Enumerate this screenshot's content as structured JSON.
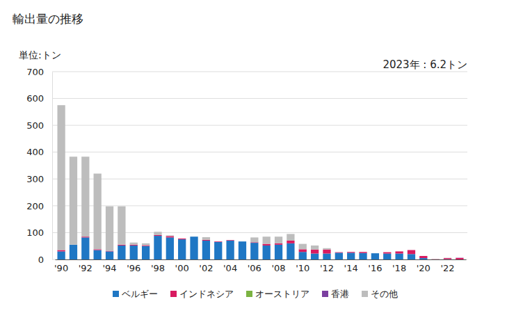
{
  "chart_data": {
    "type": "bar",
    "title": "輸出量の推移",
    "subtitle": "単位:トン",
    "annotation": "2023年 : 6.2トン",
    "stacked": true,
    "grid": true,
    "legend": "bottom",
    "categories": [
      "'90",
      null,
      "'92",
      null,
      "'94",
      null,
      "'96",
      null,
      "'98",
      null,
      "'00",
      null,
      "'02",
      null,
      "'04",
      null,
      "'06",
      null,
      "'08",
      null,
      "'10",
      null,
      "'12",
      null,
      "'14",
      null,
      "'16",
      null,
      "'18",
      null,
      "'20",
      null,
      "'22",
      null
    ],
    "ylim": [
      0,
      700
    ],
    "yticks": [
      0,
      100,
      200,
      300,
      400,
      500,
      600,
      700
    ],
    "series": [
      {
        "name": "ベルギー",
        "color": "#1f77c4",
        "values": [
          30,
          55,
          82,
          35,
          30,
          52,
          52,
          50,
          88,
          82,
          75,
          85,
          70,
          65,
          70,
          67,
          62,
          52,
          55,
          60,
          28,
          22,
          22,
          25,
          25,
          24,
          23,
          22,
          22,
          20,
          5,
          0,
          1,
          0
        ]
      },
      {
        "name": "インドネシア",
        "color": "#d81b60",
        "values": [
          5,
          0,
          3,
          3,
          2,
          3,
          3,
          3,
          3,
          5,
          3,
          0,
          3,
          2,
          2,
          0,
          2,
          6,
          5,
          10,
          10,
          15,
          15,
          2,
          3,
          4,
          0,
          5,
          8,
          15,
          8,
          1,
          4,
          5.5
        ]
      },
      {
        "name": "オーストリア",
        "color": "#7cb342",
        "values": [
          0,
          0,
          0,
          0,
          0,
          0,
          0,
          0,
          0,
          0,
          0,
          0,
          0,
          0,
          0,
          0,
          0,
          0,
          0,
          0,
          0,
          0,
          0,
          0,
          0,
          0,
          0,
          0,
          0,
          0,
          0,
          0,
          0,
          0
        ]
      },
      {
        "name": "香港",
        "color": "#7b3fa0",
        "values": [
          0,
          0,
          0,
          0,
          0,
          0,
          0,
          0,
          0,
          0,
          0,
          0,
          0,
          0,
          0,
          0,
          0,
          0,
          0,
          0,
          0,
          0,
          0,
          0,
          0,
          0,
          0,
          0,
          0,
          0,
          0,
          0,
          0,
          0.7
        ]
      },
      {
        "name": "その他",
        "color": "#bdbdbd",
        "values": [
          540,
          328,
          298,
          282,
          166,
          143,
          8,
          7,
          12,
          3,
          0,
          0,
          10,
          0,
          0,
          0,
          18,
          27,
          25,
          25,
          20,
          15,
          5,
          0,
          0,
          0,
          0,
          0,
          0,
          0,
          0,
          1,
          1,
          0
        ]
      }
    ]
  }
}
